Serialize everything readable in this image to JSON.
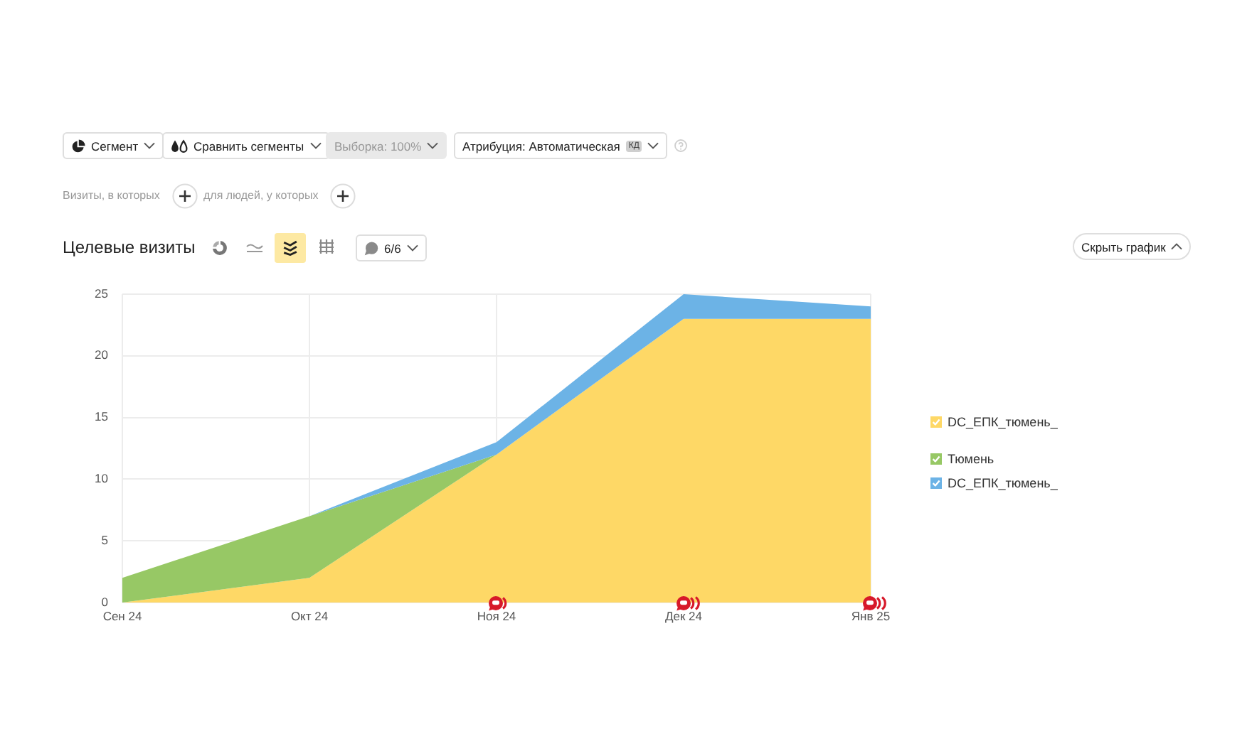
{
  "chart_data": {
    "type": "area",
    "title": "Целевые визиты",
    "categories": [
      "Сен 24",
      "Окт 24",
      "Ноя 24",
      "Дек 24",
      "Янв 25"
    ],
    "series": [
      {
        "name": "DC_ЕПК_тюмень_",
        "color": "#fed866",
        "values": [
          0,
          2,
          12,
          23,
          23
        ]
      },
      {
        "name": "Тюмень",
        "color": "#97c865",
        "values": [
          2,
          5,
          0,
          null,
          null
        ]
      },
      {
        "name": "DC_ЕПК_тюмень_",
        "color": "#6cb3e6",
        "values": [
          null,
          0,
          1,
          2,
          1
        ]
      }
    ],
    "stacked": true,
    "ylim": [
      0,
      25
    ],
    "yticks": [
      0,
      5,
      10,
      15,
      20,
      25
    ],
    "grid": true,
    "legend": "right",
    "annotations": [
      "Сегмент",
      "Сравнить сегменты",
      "Выборка: 100%",
      "Атрибуция: Автоматическая",
      "КД",
      "Визиты, в которых",
      "для людей, у которых",
      "6/6",
      "Скрыть график"
    ]
  }
}
